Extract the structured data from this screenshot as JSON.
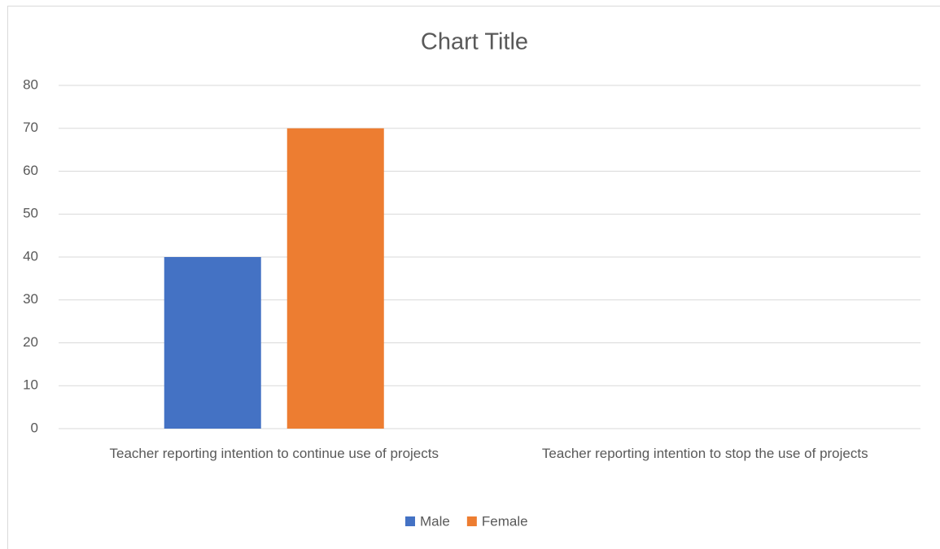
{
  "chart_data": {
    "type": "bar",
    "title": "Chart Title",
    "categories": [
      "Teacher reporting intention to continue use of projects",
      "Teacher reporting intention to stop the use of projects"
    ],
    "series": [
      {
        "name": "Male",
        "color": "#4472c4",
        "values": [
          40,
          0
        ]
      },
      {
        "name": "Female",
        "color": "#ed7d31",
        "values": [
          70,
          0
        ]
      }
    ],
    "ylim": [
      0,
      80
    ],
    "yticks": [
      0,
      10,
      20,
      30,
      40,
      50,
      60,
      70,
      80
    ],
    "grid": true,
    "legend": "bottom"
  }
}
